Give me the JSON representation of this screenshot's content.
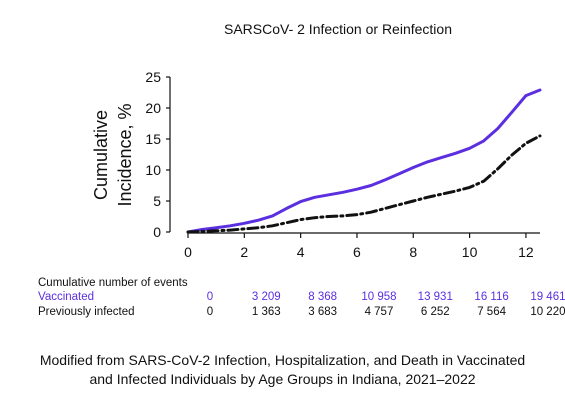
{
  "chart_data": {
    "type": "line",
    "title": "SARSCoV- 2 Infection or Reinfection",
    "ylabel": "Cumulative Incidence, %",
    "xlabel": "",
    "xlim": [
      0,
      12.5
    ],
    "ylim": [
      0,
      25
    ],
    "xticks": [
      "0",
      "2",
      "4",
      "6",
      "8",
      "10",
      "12"
    ],
    "yticks": [
      "0",
      "5",
      "10",
      "15",
      "20",
      "25"
    ],
    "grid": false,
    "colors": {
      "vaccinated": "#5b2fe0",
      "previously_infected": "#111111"
    },
    "series": [
      {
        "name": "Vaccinated",
        "style": "solid",
        "x": [
          0,
          0.5,
          1,
          1.5,
          2,
          2.5,
          3,
          3.5,
          4,
          4.5,
          5,
          5.5,
          6,
          6.5,
          7,
          7.5,
          8,
          8.5,
          9,
          9.5,
          10,
          10.5,
          11,
          11.5,
          12,
          12.5
        ],
        "values": [
          0,
          0.4,
          0.7,
          1.0,
          1.4,
          1.9,
          2.6,
          3.8,
          4.9,
          5.6,
          6.0,
          6.4,
          6.9,
          7.5,
          8.4,
          9.4,
          10.4,
          11.3,
          12.0,
          12.7,
          13.5,
          14.7,
          16.7,
          19.3,
          22.0,
          22.9
        ]
      },
      {
        "name": "Previously infected",
        "style": "dash-dot",
        "x": [
          0,
          0.5,
          1,
          1.5,
          2,
          2.5,
          3,
          3.5,
          4,
          4.5,
          5,
          5.5,
          6,
          6.5,
          7,
          7.5,
          8,
          8.5,
          9,
          9.5,
          10,
          10.5,
          11,
          11.5,
          12,
          12.5
        ],
        "values": [
          0,
          0.1,
          0.2,
          0.3,
          0.5,
          0.7,
          1.0,
          1.5,
          2.0,
          2.3,
          2.5,
          2.6,
          2.8,
          3.2,
          3.8,
          4.4,
          5.0,
          5.6,
          6.1,
          6.6,
          7.2,
          8.2,
          10.2,
          12.4,
          14.3,
          15.5
        ]
      }
    ],
    "events_table": {
      "header": "Cumulative number of events",
      "rows": [
        {
          "label": "Vaccinated",
          "values": [
            "0",
            "3 209",
            "8 368",
            "10 958",
            "13 931",
            "16 116",
            "19 461"
          ]
        },
        {
          "label": "Previously infected",
          "values": [
            "0",
            "1 363",
            "3 683",
            "4 757",
            "6 252",
            "7 564",
            "10 220"
          ]
        }
      ]
    }
  },
  "caption": {
    "line1": "Modified from SARS-CoV-2 Infection, Hospitalization, and Death in Vaccinated",
    "line2": "and Infected Individuals  by Age Groups in Indiana, 2021–2022"
  }
}
